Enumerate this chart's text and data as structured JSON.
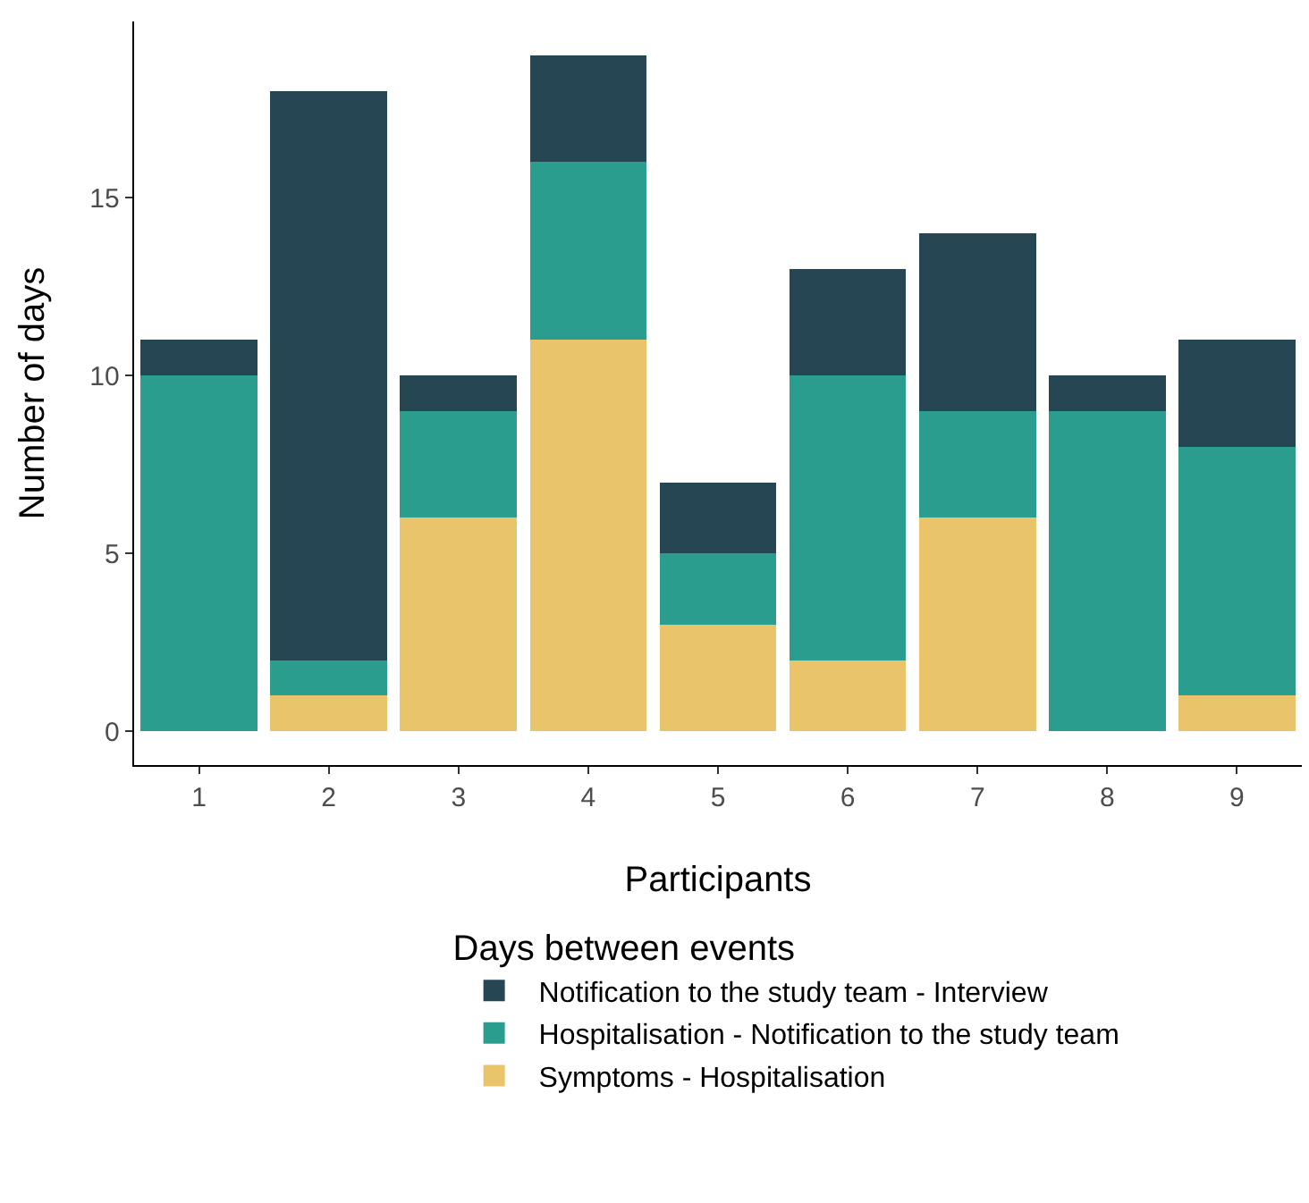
{
  "chart_data": {
    "type": "bar",
    "stacked": true,
    "xlabel": "Participants",
    "ylabel": "Number of days",
    "legend_title": "Days between events",
    "categories": [
      "1",
      "2",
      "3",
      "4",
      "5",
      "6",
      "7",
      "8",
      "9"
    ],
    "series": [
      {
        "name": "Symptoms - Hospitalisation",
        "color": "#e9c46a",
        "values": [
          0,
          1,
          6,
          11,
          3,
          2,
          6,
          0,
          1
        ]
      },
      {
        "name": "Hospitalisation - Notification to the study team",
        "color": "#2a9d8f",
        "values": [
          10,
          1,
          3,
          5,
          2,
          8,
          3,
          9,
          7
        ]
      },
      {
        "name": "Notification to the study team - Interview",
        "color": "#264653",
        "values": [
          1,
          16,
          1,
          3,
          2,
          3,
          5,
          1,
          3
        ]
      }
    ],
    "ylim": [
      -0.95,
      19.95
    ],
    "yticks": [
      0,
      5,
      10,
      15
    ],
    "grid": false,
    "legend": "bottom"
  }
}
